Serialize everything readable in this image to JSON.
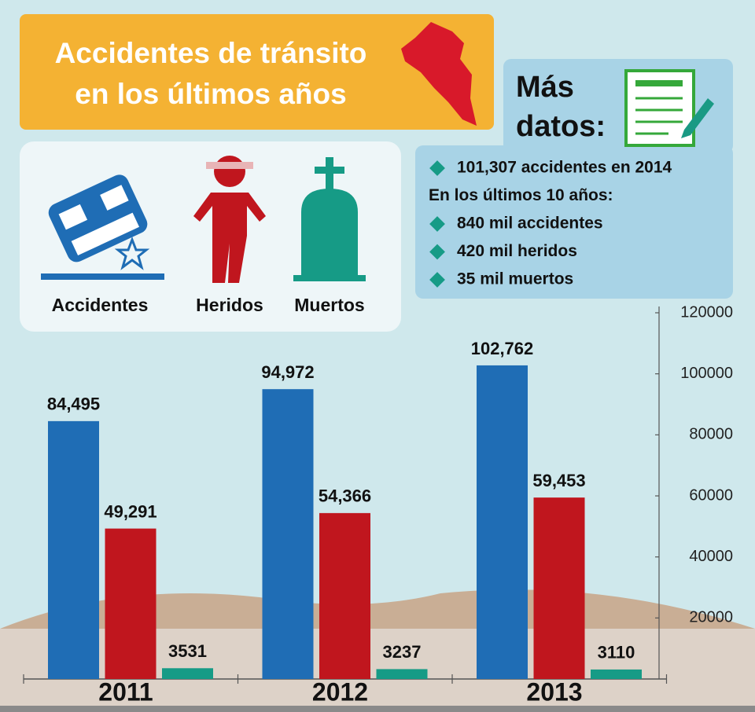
{
  "chart_data": {
    "type": "bar",
    "title": [
      "Accidentes de tránsito",
      "en los últimos años"
    ],
    "categories": [
      "2011",
      "2012",
      "2013"
    ],
    "series": [
      {
        "name": "Accidentes",
        "color": "#1f6db5",
        "values": [
          84495,
          94972,
          102762
        ],
        "value_labels": [
          "84,495",
          "94,972",
          "102,762"
        ]
      },
      {
        "name": "Heridos",
        "color": "#c0161e",
        "values": [
          49291,
          54366,
          59453
        ],
        "value_labels": [
          "49,291",
          "54,366",
          "59,453"
        ]
      },
      {
        "name": "Muertos",
        "color": "#169b86",
        "values": [
          3531,
          3237,
          3110
        ]
      }
    ],
    "ylim": [
      0,
      120000
    ],
    "yticks": [
      20000,
      40000,
      60000,
      80000,
      100000,
      120000
    ],
    "annotations": {
      "heading": [
        "Más",
        "datos:"
      ],
      "items": [
        {
          "text": "101,307 accidentes en 2014",
          "bullet": true
        },
        {
          "text": "En los últimos 10 años:",
          "bullet": false
        },
        {
          "text": "840 mil accidentes",
          "bullet": true
        },
        {
          "text": "420 mil heridos",
          "bullet": true
        },
        {
          "text": "35 mil muertos",
          "bullet": true
        }
      ]
    }
  }
}
